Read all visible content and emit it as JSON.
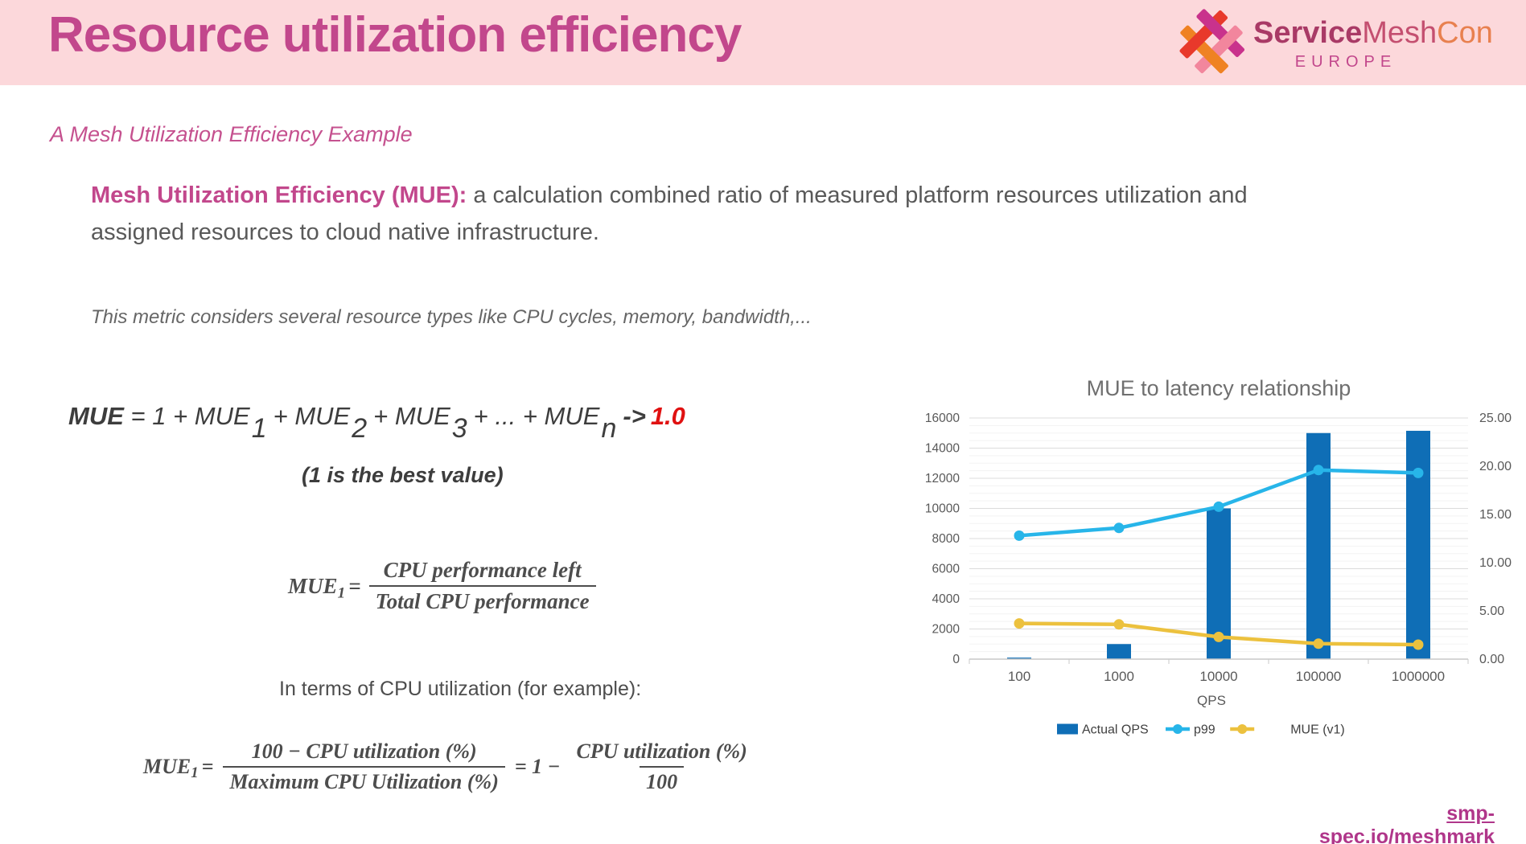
{
  "slide": {
    "title": "Resource utilization efficiency",
    "logo": {
      "brand_service": "Service",
      "brand_mesh": "Mesh",
      "brand_con": "Con",
      "region": "EUROPE"
    },
    "subtitle": "A Mesh Utilization Efficiency Example",
    "definition": {
      "lead": "Mesh Utilization Efficiency (MUE):",
      "rest": " a calculation combined ratio of measured platform resources utilization and assigned resources to cloud native infrastructure."
    },
    "note": "This metric considers several resource types like CPU cycles, memory, bandwidth,...",
    "formula_sum": {
      "lhs": "MUE",
      "p2": " = 1 + MUE",
      "s1": "1",
      "p3": "+ MUE",
      "s2": "2",
      "p4": "+ MUE",
      "s3": "3",
      "p5": "+ ... + MUE",
      "s4": "n",
      "arrow": "->",
      "target": "1.0",
      "caption": "(1 is the best value)"
    },
    "formula_mue1": {
      "lhs": "MUE",
      "lhs_sub": "1",
      "eq": "=",
      "num": "CPU performance left",
      "den": "Total CPU performance"
    },
    "interms": "In terms of CPU utilization (for example):",
    "formula_cpu": {
      "lhs": "MUE",
      "lhs_sub": "1",
      "eq": "=",
      "f1num": "100 − CPU utilization (%)",
      "f1den": "Maximum CPU Utilization (%)",
      "mid": "= 1 −",
      "f2num": "CPU utilization (%)",
      "f2den": "100"
    },
    "footer_link": "smp-spec.io/meshmark",
    "colors": {
      "header_bg": "#fcd8db",
      "accent_magenta": "#c2478c",
      "body_gray": "#595959",
      "formula_gray": "#3d3d3d",
      "target_red": "#e01111",
      "link_magenta": "#b0368a"
    }
  },
  "chart_data": {
    "type": "bar",
    "title": "MUE to latency relationship",
    "xlabel": "QPS",
    "categories": [
      "100",
      "1000",
      "10000",
      "100000",
      "1000000"
    ],
    "left_axis": {
      "min": 0,
      "max": 16000,
      "step": 2000,
      "minor_step": 500
    },
    "right_axis": {
      "min": 0,
      "max": 25,
      "step": 5
    },
    "left_ticks": [
      "0",
      "2000",
      "4000",
      "6000",
      "8000",
      "10000",
      "12000",
      "14000",
      "16000"
    ],
    "right_ticks": [
      "0.00",
      "5.00",
      "10.00",
      "15.00",
      "20.00",
      "25.00"
    ],
    "series": [
      {
        "name": "Actual QPS",
        "type": "bar",
        "axis": "left",
        "color": "#0f6eb6",
        "values": [
          100,
          1000,
          10000,
          15000,
          15150
        ]
      },
      {
        "name": "p99",
        "type": "line",
        "axis": "right",
        "color": "#27b5e9",
        "values": [
          12.8,
          13.6,
          15.8,
          19.6,
          19.3
        ]
      },
      {
        "name": "MUE (v1)",
        "type": "line",
        "axis": "right",
        "color": "#ecc13e",
        "values": [
          3.7,
          3.6,
          2.3,
          1.6,
          1.5
        ]
      }
    ],
    "legend_position": "bottom",
    "grid": true
  }
}
